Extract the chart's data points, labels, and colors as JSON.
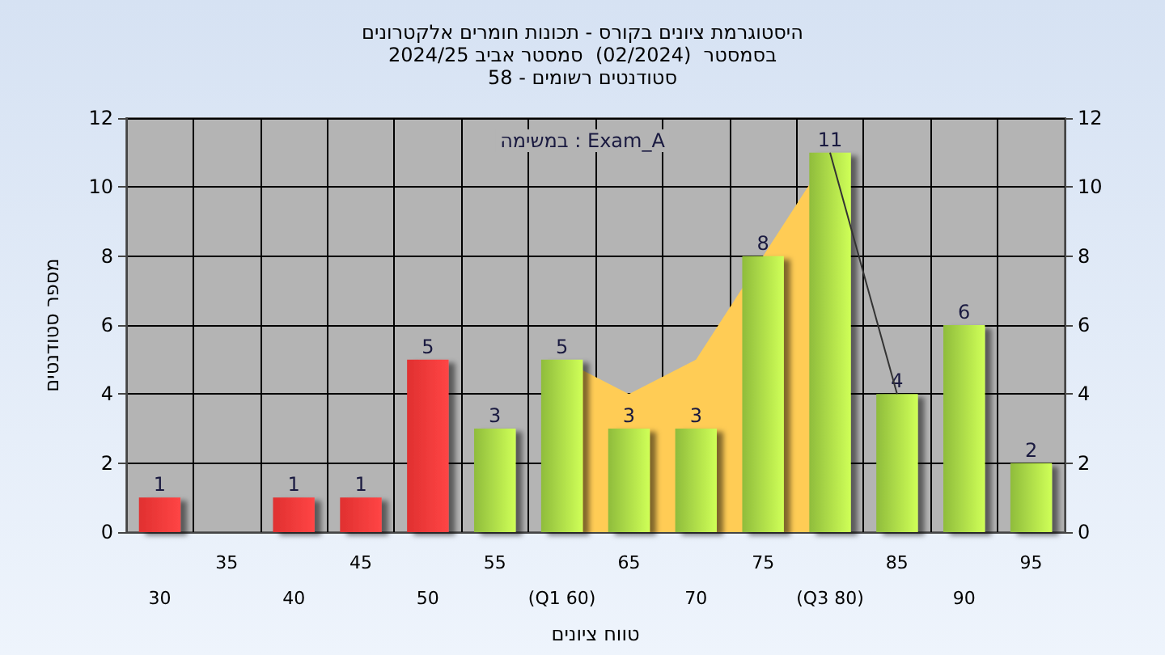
{
  "chart_data": {
    "type": "bar",
    "title": "היסטוגרמת ציונים בקורס - תכונות חומרים אלקטרונים",
    "subtitle": "בסמסטר  (02/2024)  סמסטר אביב 2024/25\nסטודנטים רשומים - 58",
    "xlabel": "טווח ציונים",
    "ylabel": "מספר סטודנטים",
    "categories": [
      "30",
      "35",
      "40",
      "45",
      "50",
      "55",
      "(Q1 60)",
      "65",
      "70",
      "75",
      "(Q3 80)",
      "85",
      "90",
      "95"
    ],
    "series": [
      {
        "type": "area",
        "color": "#ffcc55",
        "values": [
          null,
          null,
          null,
          null,
          null,
          null,
          5,
          4,
          5,
          8,
          11,
          null,
          null,
          null
        ]
      },
      {
        "type": "line",
        "color": "#333333",
        "values": [
          null,
          null,
          null,
          null,
          null,
          null,
          null,
          null,
          null,
          null,
          11,
          4,
          null,
          null
        ]
      },
      {
        "values": [
          1,
          null,
          1,
          1,
          5,
          3,
          5,
          3,
          3,
          8,
          11,
          4,
          6,
          2
        ],
        "value_labels": [
          "1",
          null,
          "1",
          "1",
          "5",
          "3",
          "5",
          "3",
          "3",
          "8",
          "11",
          "4",
          "6",
          "2"
        ],
        "colors": [
          "#e03030",
          "#e03030",
          "#e03030",
          "#e03030",
          "#e03030",
          "#8fbc3c",
          "#8fbc3c",
          "#8fbc3c",
          "#8fbc3c",
          "#8fbc3c",
          "#8fbc3c",
          "#8fbc3c",
          "#8fbc3c",
          "#8fbc3c"
        ]
      }
    ],
    "annotations": [
      "במשימה : Exam_A"
    ],
    "ylim": [
      0,
      12
    ],
    "yticks": [
      0,
      2,
      4,
      6,
      8,
      10,
      12
    ],
    "y2lim": [
      0,
      12
    ],
    "y2ticks": [
      0,
      2,
      4,
      6,
      8,
      10,
      12
    ],
    "grid": true
  }
}
